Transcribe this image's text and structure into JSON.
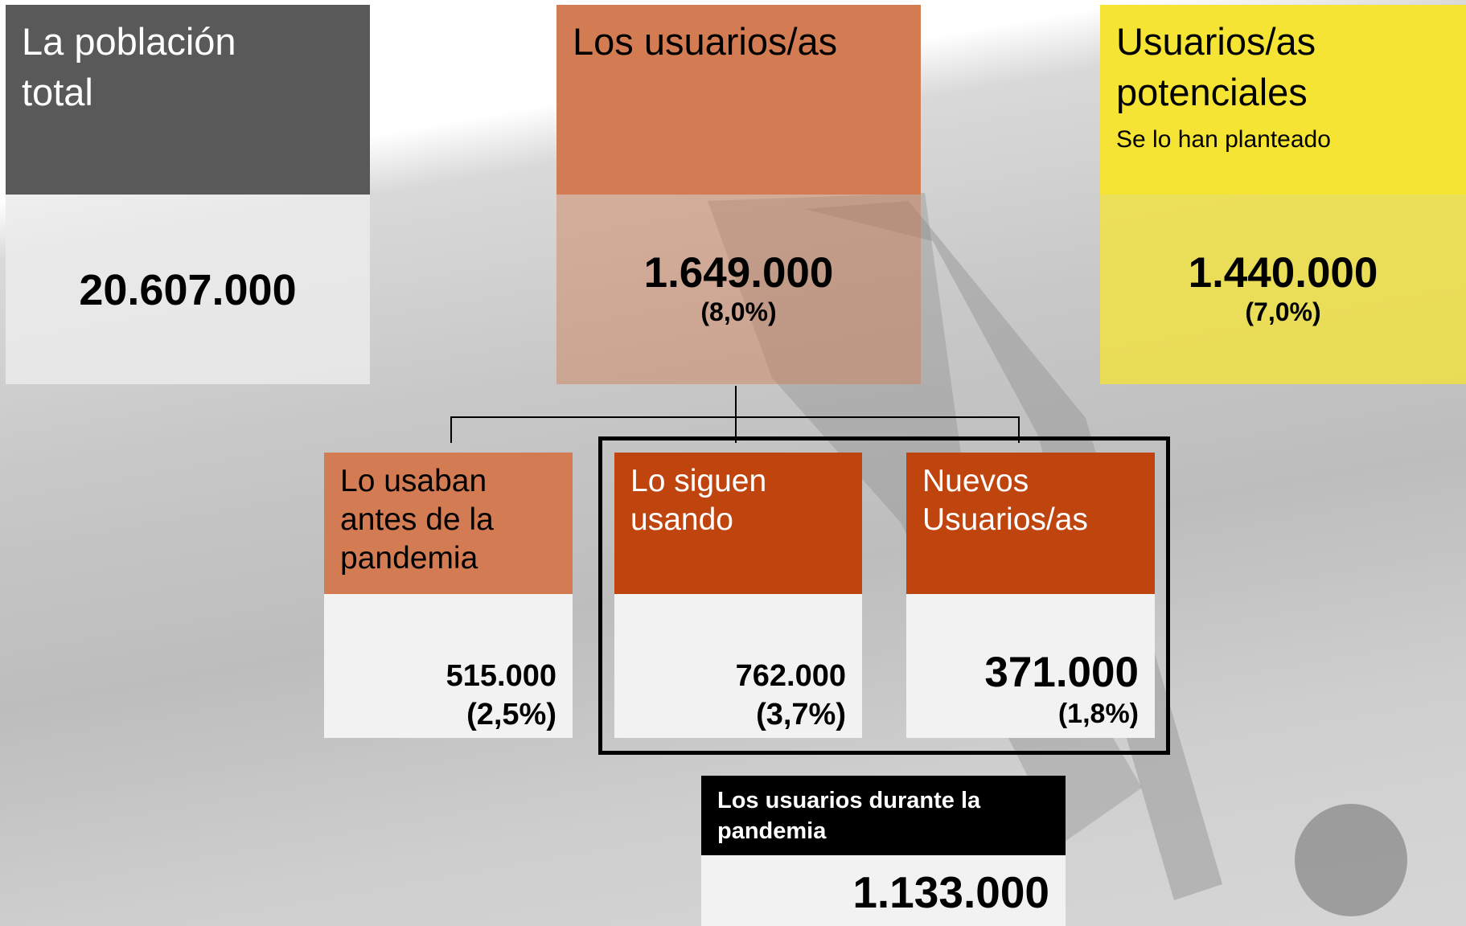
{
  "top_boxes": [
    {
      "title": [
        "La población",
        "total"
      ],
      "value": "20.607.000"
    },
    {
      "title": [
        "Los usuarios/as"
      ],
      "value": "1.649.000",
      "percent": "(8,0%)"
    },
    {
      "title": [
        "Usuarios/as",
        "potenciales"
      ],
      "subtitle": "Se lo han planteado",
      "value": "1.440.000",
      "percent": "(7,0%)"
    }
  ],
  "sub_boxes": [
    {
      "title": [
        "Lo usaban",
        "antes de la",
        "pandemia"
      ],
      "value": "515.000",
      "percent": "(2,5%)"
    },
    {
      "title": [
        "Lo siguen",
        "usando"
      ],
      "value": "762.000",
      "percent": "(3,7%)"
    },
    {
      "title": [
        "Nuevos",
        "Usuarios/as"
      ],
      "value": "371.000",
      "percent": "(1,8%)"
    }
  ],
  "pandemic_total": {
    "title": [
      "Los usuarios durante la",
      "pandemia"
    ],
    "value": "1.133.000"
  }
}
